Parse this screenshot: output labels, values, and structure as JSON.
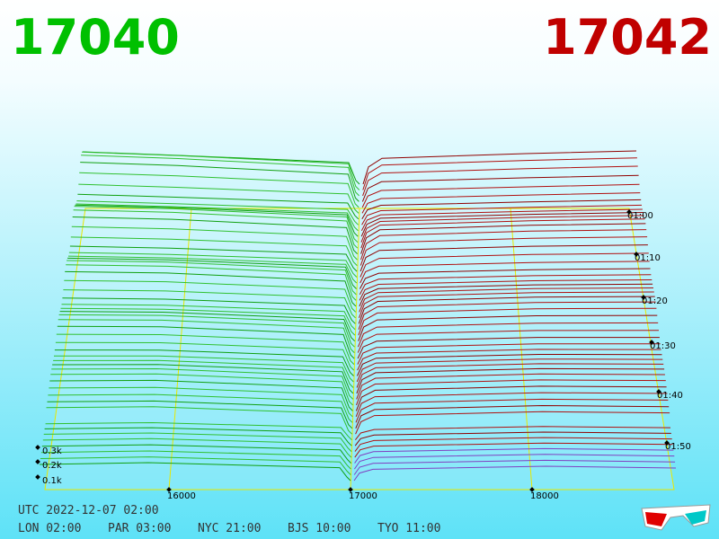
{
  "header": {
    "bid_price": "17040",
    "ask_price": "17042"
  },
  "axis": {
    "price_ticks": [
      "16000",
      "17000",
      "18000"
    ],
    "volume_ticks": [
      "0.3k",
      "0.2k",
      "0.1k"
    ],
    "time_ticks": [
      "01:00",
      "01:10",
      "01:20",
      "01:30",
      "01:40",
      "01:50"
    ]
  },
  "footer": {
    "utc": "UTC 2022-12-07 02:00",
    "clocks": [
      "LON 02:00",
      "PAR 03:00",
      "NYC 21:00",
      "BJS 10:00",
      "TYO 11:00"
    ]
  }
}
